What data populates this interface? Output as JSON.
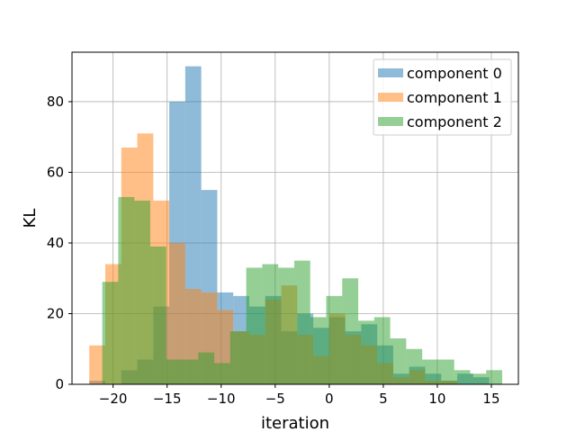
{
  "chart_data": {
    "type": "bar",
    "subtype": "overlapping-histogram",
    "xlabel": "iteration",
    "ylabel": "KL",
    "xlim": [
      -23.8,
      17.5
    ],
    "ylim": [
      0,
      94
    ],
    "xticks": [
      -20,
      -15,
      -10,
      -5,
      0,
      5,
      10,
      15
    ],
    "xtick_labels": [
      "−20",
      "−15",
      "−10",
      "−5",
      "0",
      "5",
      "10",
      "15"
    ],
    "yticks": [
      0,
      20,
      40,
      60,
      80
    ],
    "ytick_labels": [
      "0",
      "20",
      "40",
      "60",
      "80"
    ],
    "grid": true,
    "legend_position": "top-right",
    "bar_opacity": 0.5,
    "series": [
      {
        "name": "component 0",
        "color": "#1f77b4",
        "bin_start": -22.2,
        "bin_width": 1.48,
        "values": [
          1,
          0,
          4,
          7,
          22,
          80,
          90,
          55,
          26,
          25,
          22,
          25,
          15,
          20,
          16,
          19,
          15,
          17,
          11,
          3,
          5,
          3,
          1,
          3,
          2
        ]
      },
      {
        "name": "component 1",
        "color": "#ff7f0e",
        "bin_start": -22.2,
        "bin_width": 1.48,
        "values": [
          11,
          34,
          67,
          71,
          52,
          40,
          27,
          26,
          21,
          15,
          14,
          24,
          28,
          14,
          8,
          20,
          14,
          11,
          6,
          2,
          4,
          1,
          1
        ]
      },
      {
        "name": "component 2",
        "color": "#2ca02c",
        "bin_start": -21.0,
        "bin_width": 1.48,
        "values": [
          29,
          53,
          52,
          39,
          7,
          7,
          9,
          6,
          15,
          33,
          34,
          33,
          35,
          19,
          25,
          30,
          18,
          19,
          13,
          10,
          7,
          7,
          4,
          3,
          4
        ]
      }
    ]
  }
}
